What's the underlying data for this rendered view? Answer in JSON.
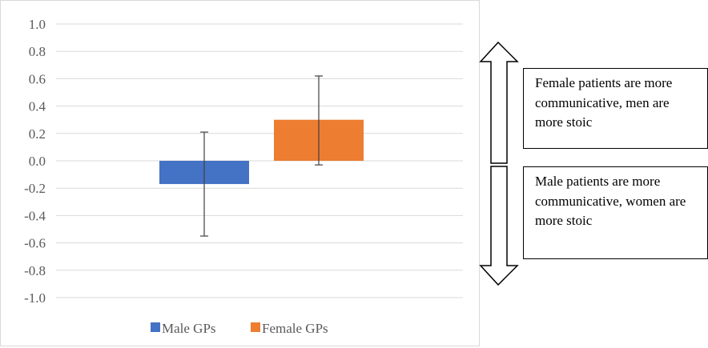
{
  "chart_data": {
    "type": "bar",
    "categories": [
      "Male GPs",
      "Female GPs"
    ],
    "values": [
      -0.17,
      0.3
    ],
    "error_bars": [
      {
        "low": -0.55,
        "high": 0.21
      },
      {
        "low": -0.03,
        "high": 0.62
      }
    ],
    "colors": [
      "#4472C4",
      "#ED7D31"
    ],
    "ylim": [
      -1.0,
      1.0
    ],
    "yticks": [
      "1.0",
      "0.8",
      "0.6",
      "0.4",
      "0.2",
      "0.0",
      "-0.2",
      "-0.4",
      "-0.6",
      "-0.8",
      "-1.0"
    ],
    "ytick_values": [
      1.0,
      0.8,
      0.6,
      0.4,
      0.2,
      0.0,
      -0.2,
      -0.4,
      -0.6,
      -0.8,
      -1.0
    ],
    "grid": true,
    "legend": [
      "Male GPs",
      "Female GPs"
    ],
    "legend_position": "bottom"
  },
  "annotations": {
    "top_note": "Female patients are more communicative, men are more stoic",
    "bottom_note": "Male patients are more communicative, women are more stoic"
  },
  "gridline_color": "#d9d9d9",
  "arrow": "double-headed-vertical-arrow"
}
